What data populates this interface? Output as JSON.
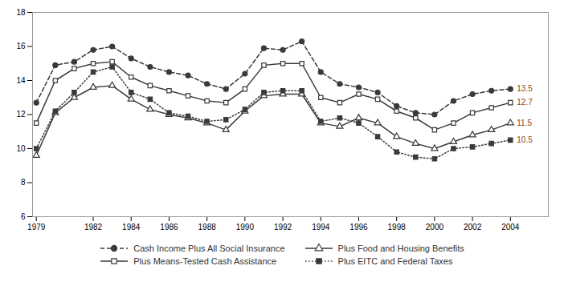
{
  "chart_data": {
    "type": "line",
    "x": [
      1979,
      1980,
      1981,
      1982,
      1983,
      1984,
      1985,
      1986,
      1987,
      1988,
      1989,
      1990,
      1991,
      1992,
      1993,
      1994,
      1995,
      1996,
      1997,
      1998,
      1999,
      2000,
      2001,
      2002,
      2003,
      2004
    ],
    "series": [
      {
        "name": "Cash Income Plus All Social Insurance",
        "color": "#3a3a3a",
        "marker": "circle",
        "line_style": "dashed",
        "values": [
          12.7,
          14.9,
          15.1,
          15.8,
          16.0,
          15.3,
          14.8,
          14.5,
          14.3,
          13.8,
          13.5,
          14.4,
          15.9,
          15.8,
          16.3,
          14.5,
          13.8,
          13.6,
          13.3,
          12.5,
          12.1,
          12.0,
          12.8,
          13.2,
          13.4,
          13.5
        ]
      },
      {
        "name": "Plus Means-Tested Cash Assistance",
        "color": "#3a3a3a",
        "marker": "square-open",
        "line_style": "solid",
        "values": [
          11.5,
          14.0,
          14.7,
          15.0,
          15.1,
          14.2,
          13.7,
          13.4,
          13.1,
          12.8,
          12.7,
          13.5,
          14.9,
          15.0,
          15.0,
          13.0,
          12.7,
          13.2,
          12.9,
          12.2,
          11.8,
          11.1,
          11.5,
          12.1,
          12.4,
          12.7
        ]
      },
      {
        "name": "Plus Food and Housing Benefits",
        "color": "#3a3a3a",
        "marker": "triangle-open",
        "line_style": "solid",
        "values": [
          9.6,
          12.1,
          13.0,
          13.6,
          13.7,
          12.9,
          12.3,
          12.0,
          11.8,
          11.5,
          11.1,
          12.2,
          13.1,
          13.2,
          13.2,
          11.5,
          11.3,
          11.8,
          11.5,
          10.7,
          10.3,
          10.0,
          10.4,
          10.8,
          11.1,
          11.5
        ]
      },
      {
        "name": "Plus EITC and Federal Taxes",
        "color": "#3a3a3a",
        "marker": "square",
        "line_style": "dotted",
        "values": [
          10.0,
          12.2,
          13.3,
          14.5,
          14.8,
          13.3,
          12.9,
          12.1,
          11.9,
          11.6,
          11.7,
          12.3,
          13.3,
          13.4,
          13.4,
          11.6,
          11.8,
          11.5,
          10.7,
          9.8,
          9.5,
          9.4,
          10.0,
          10.1,
          10.3,
          10.5
        ]
      }
    ],
    "annotations": [
      {
        "text": "13.5",
        "x": 2004,
        "y": 13.5,
        "color": "#8B4513"
      },
      {
        "text": "12.7",
        "x": 2004,
        "y": 12.7,
        "color": "#8B4513"
      },
      {
        "text": "11.5",
        "x": 2004,
        "y": 11.5,
        "color": "#8B4513"
      },
      {
        "text": "10.5",
        "x": 2004,
        "y": 10.5,
        "color": "#8B4513"
      }
    ],
    "xlim": [
      1978.8,
      2006.0
    ],
    "xticks": [
      1979,
      1982,
      1984,
      1986,
      1988,
      1990,
      1992,
      1994,
      1996,
      1998,
      2000,
      2002,
      2004
    ],
    "ylim": [
      6,
      18
    ],
    "yticks": [
      6,
      8,
      10,
      12,
      14,
      16,
      18
    ],
    "grid": false,
    "legend": "bottom"
  }
}
